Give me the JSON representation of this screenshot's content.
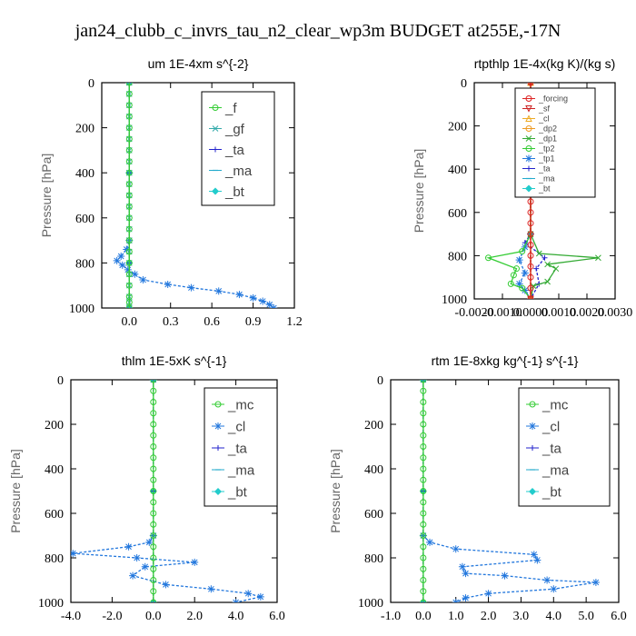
{
  "figure_title": "jan24_clubb_c_invrs_tau_n2_clear_wp3m  BUDGET at255E,-17N",
  "chart_data": [
    {
      "type": "line",
      "title": "um   1E-4xm s^{-2}",
      "ylabel": "Pressure [hPa]",
      "xlim": [
        -0.2,
        1.2
      ],
      "ylim": [
        1000,
        0
      ],
      "xticks": [
        0.0,
        0.3,
        0.6,
        0.9,
        1.2
      ],
      "xtick_labels": [
        "0.0",
        "0.3",
        "0.6",
        "0.9",
        "1.2"
      ],
      "yticks": [
        0,
        200,
        400,
        600,
        800,
        1000
      ],
      "ytick_labels": [
        "0",
        "200",
        "400",
        "600",
        "800",
        "1000"
      ],
      "legend_position": "top-right",
      "series": [
        {
          "name": "_f",
          "color": "#33cc33",
          "marker": "circle",
          "x": [
            0,
            0,
            0,
            0,
            0,
            0,
            0,
            0,
            0,
            0,
            0,
            0,
            0,
            0,
            0,
            0,
            0,
            0,
            0,
            0,
            0,
            0
          ],
          "y": [
            0,
            50,
            100,
            150,
            200,
            250,
            300,
            350,
            400,
            450,
            500,
            550,
            600,
            650,
            700,
            750,
            800,
            850,
            900,
            950,
            975,
            1000
          ]
        },
        {
          "name": "_gf",
          "color": "#33aaaa",
          "marker": "x",
          "x": [
            0,
            0,
            0,
            0,
            0,
            0,
            0,
            0,
            0,
            0,
            0,
            0,
            0,
            0,
            0,
            0,
            0,
            0,
            0,
            0,
            0,
            0
          ],
          "y": [
            0,
            50,
            100,
            150,
            200,
            250,
            300,
            350,
            400,
            450,
            500,
            550,
            600,
            650,
            700,
            750,
            800,
            850,
            900,
            950,
            975,
            1000
          ]
        },
        {
          "name": "_ta",
          "color": "#2222cc",
          "marker": "plus",
          "x": [
            0,
            0,
            0,
            0
          ],
          "y": [
            0,
            400,
            800,
            1000
          ]
        },
        {
          "name": "_ma",
          "color": "#22aacc",
          "marker": "dash",
          "x": [
            0,
            0,
            0,
            0
          ],
          "y": [
            0,
            400,
            800,
            1000
          ]
        },
        {
          "name": "_bt",
          "color": "#22cccc",
          "marker": "diamond",
          "x": [
            0,
            0,
            0,
            0
          ],
          "y": [
            0,
            400,
            800,
            1000
          ]
        },
        {
          "name": "",
          "color": "#2277dd",
          "marker": "star",
          "x": [
            0,
            0,
            0,
            -0.02,
            -0.06,
            -0.09,
            -0.05,
            -0.01,
            0.04,
            0.1,
            0.28,
            0.45,
            0.65,
            0.8,
            0.9,
            0.97,
            1.02,
            1.05
          ],
          "y": [
            0,
            400,
            700,
            740,
            770,
            790,
            810,
            830,
            850,
            875,
            895,
            910,
            925,
            940,
            955,
            970,
            985,
            1000
          ]
        }
      ]
    },
    {
      "type": "line",
      "title": "rtpthlp   1E-4x(kg K)/(kg s)",
      "ylabel": "Pressure [hPa]",
      "xlim": [
        -0.002,
        0.003
      ],
      "ylim": [
        1000,
        0
      ],
      "xticks": [
        -0.002,
        -0.001,
        0.0,
        0.001,
        0.002,
        0.003
      ],
      "xtick_labels": [
        "-0.0020",
        "-0.0010",
        "0.0000",
        "0.0010",
        "0.0020",
        "0.0030"
      ],
      "yticks": [
        0,
        200,
        400,
        600,
        800,
        1000
      ],
      "ytick_labels": [
        "0",
        "200",
        "400",
        "600",
        "800",
        "1000"
      ],
      "legend_position": "top-right",
      "series": [
        {
          "name": "_forcing",
          "color": "#dd2222",
          "marker": "circle",
          "x": [
            0,
            0,
            0,
            0,
            0,
            0,
            0,
            0,
            0,
            0,
            0,
            0,
            0,
            0,
            0,
            0,
            0,
            0,
            0,
            0,
            0
          ],
          "y": [
            0,
            50,
            100,
            150,
            200,
            250,
            300,
            350,
            400,
            450,
            500,
            550,
            600,
            650,
            700,
            750,
            800,
            850,
            900,
            950,
            1000
          ]
        },
        {
          "name": "_sf",
          "color": "#cc2222",
          "marker": "triangle-down",
          "x": [
            0,
            0
          ],
          "y": [
            0,
            1000
          ]
        },
        {
          "name": "_cl",
          "color": "#eeaa22",
          "marker": "triangle",
          "x": [
            0,
            0
          ],
          "y": [
            0,
            1000
          ]
        },
        {
          "name": "_dp2",
          "color": "#ee9922",
          "marker": "circle",
          "x": [
            0,
            0
          ],
          "y": [
            0,
            1000
          ]
        },
        {
          "name": "_dp1",
          "color": "#33aa33",
          "marker": "x",
          "x": [
            0,
            0,
            0.0003,
            0.0024,
            0.0006,
            0.0009,
            0.0006,
            0.0001,
            0
          ],
          "y": [
            0,
            700,
            790,
            810,
            840,
            860,
            920,
            940,
            1000
          ]
        },
        {
          "name": "_tp2",
          "color": "#33cc33",
          "marker": "circle",
          "x": [
            0,
            0,
            -0.0003,
            -0.0015,
            -0.0005,
            -0.0006,
            -0.0007,
            -0.0003,
            0
          ],
          "y": [
            0,
            700,
            780,
            810,
            860,
            890,
            930,
            950,
            1000
          ]
        },
        {
          "name": "_tp1",
          "color": "#2277dd",
          "marker": "star",
          "x": [
            0,
            0,
            -0.0002,
            -0.0004,
            -0.0002,
            -0.0004,
            -0.0002,
            0
          ],
          "y": [
            0,
            700,
            760,
            820,
            880,
            930,
            960,
            1000
          ]
        },
        {
          "name": "_ta",
          "color": "#2222cc",
          "marker": "plus",
          "x": [
            0,
            0,
            -0.0002,
            0.0005,
            0.0002,
            0.0003,
            0
          ],
          "y": [
            0,
            700,
            740,
            810,
            860,
            930,
            1000
          ]
        },
        {
          "name": "_ma",
          "color": "#22aacc",
          "marker": "dash",
          "x": [
            0,
            0
          ],
          "y": [
            0,
            1000
          ]
        },
        {
          "name": "_bt",
          "color": "#22cccc",
          "marker": "diamond",
          "x": [
            0,
            0
          ],
          "y": [
            0,
            1000
          ]
        }
      ]
    },
    {
      "type": "line",
      "title": "thlm   1E-5xK s^{-1}",
      "ylabel": "Pressure [hPa]",
      "xlim": [
        -4.0,
        6.0
      ],
      "ylim": [
        1000,
        0
      ],
      "xticks": [
        -4.0,
        -2.0,
        0.0,
        2.0,
        4.0,
        6.0
      ],
      "xtick_labels": [
        "-4.0",
        "-2.0",
        "0.0",
        "2.0",
        "4.0",
        "6.0"
      ],
      "yticks": [
        0,
        200,
        400,
        600,
        800,
        1000
      ],
      "ytick_labels": [
        "0",
        "200",
        "400",
        "600",
        "800",
        "1000"
      ],
      "legend_position": "top-right",
      "series": [
        {
          "name": "_mc",
          "color": "#33cc33",
          "marker": "circle",
          "x": [
            0,
            0,
            0,
            0,
            0,
            0,
            0,
            0,
            0,
            0,
            0,
            0,
            0,
            0,
            0,
            0,
            0,
            0,
            0,
            0,
            0
          ],
          "y": [
            0,
            50,
            100,
            150,
            200,
            250,
            300,
            350,
            400,
            450,
            500,
            550,
            600,
            650,
            700,
            750,
            800,
            850,
            900,
            950,
            1000
          ]
        },
        {
          "name": "_cl",
          "color": "#2277dd",
          "marker": "star",
          "x": [
            0,
            0,
            -0.2,
            -1.2,
            -3.9,
            -0.8,
            2.0,
            -0.4,
            -1.0,
            0.6,
            2.8,
            4.6,
            5.2,
            4.0
          ],
          "y": [
            0,
            700,
            730,
            750,
            780,
            800,
            820,
            840,
            880,
            920,
            940,
            960,
            975,
            1000
          ]
        },
        {
          "name": "_ta",
          "color": "#2222cc",
          "marker": "plus",
          "x": [
            0,
            0,
            0
          ],
          "y": [
            0,
            500,
            1000
          ]
        },
        {
          "name": "_ma",
          "color": "#22aacc",
          "marker": "dash",
          "x": [
            0,
            0,
            0
          ],
          "y": [
            0,
            500,
            1000
          ]
        },
        {
          "name": "_bt",
          "color": "#22cccc",
          "marker": "diamond",
          "x": [
            0,
            0,
            0
          ],
          "y": [
            0,
            500,
            1000
          ]
        }
      ]
    },
    {
      "type": "line",
      "title": "rtm   1E-8xkg kg^{-1} s^{-1}",
      "ylabel": "Pressure [hPa]",
      "xlim": [
        -1.0,
        6.0
      ],
      "ylim": [
        1000,
        0
      ],
      "xticks": [
        -1.0,
        0.0,
        1.0,
        2.0,
        3.0,
        4.0,
        5.0,
        6.0
      ],
      "xtick_labels": [
        "-1.0",
        "0.0",
        "1.0",
        "2.0",
        "3.0",
        "4.0",
        "5.0",
        "6.0"
      ],
      "yticks": [
        0,
        200,
        400,
        600,
        800,
        1000
      ],
      "ytick_labels": [
        "0",
        "200",
        "400",
        "600",
        "800",
        "1000"
      ],
      "legend_position": "top-right",
      "series": [
        {
          "name": "_mc",
          "color": "#33cc33",
          "marker": "circle",
          "x": [
            0,
            0,
            0,
            0,
            0,
            0,
            0,
            0,
            0,
            0,
            0,
            0,
            0,
            0,
            0,
            0,
            0,
            0,
            0,
            0,
            0
          ],
          "y": [
            0,
            50,
            100,
            150,
            200,
            250,
            300,
            350,
            400,
            450,
            500,
            550,
            600,
            650,
            700,
            750,
            800,
            850,
            900,
            950,
            1000
          ]
        },
        {
          "name": "_cl",
          "color": "#2277dd",
          "marker": "star",
          "x": [
            0,
            0,
            0.2,
            1.0,
            3.4,
            3.5,
            1.2,
            1.3,
            2.5,
            3.8,
            5.3,
            4.0,
            2.0,
            1.3,
            1.0
          ],
          "y": [
            0,
            700,
            730,
            760,
            785,
            810,
            840,
            870,
            880,
            900,
            910,
            940,
            960,
            980,
            1000
          ]
        },
        {
          "name": "_ta",
          "color": "#2222cc",
          "marker": "plus",
          "x": [
            0,
            0,
            0
          ],
          "y": [
            0,
            500,
            1000
          ]
        },
        {
          "name": "_ma",
          "color": "#22aacc",
          "marker": "dash",
          "x": [
            0,
            0,
            0
          ],
          "y": [
            0,
            500,
            1000
          ]
        },
        {
          "name": "_bt",
          "color": "#22cccc",
          "marker": "diamond",
          "x": [
            0,
            0,
            0
          ],
          "y": [
            0,
            500,
            1000
          ]
        }
      ]
    }
  ]
}
